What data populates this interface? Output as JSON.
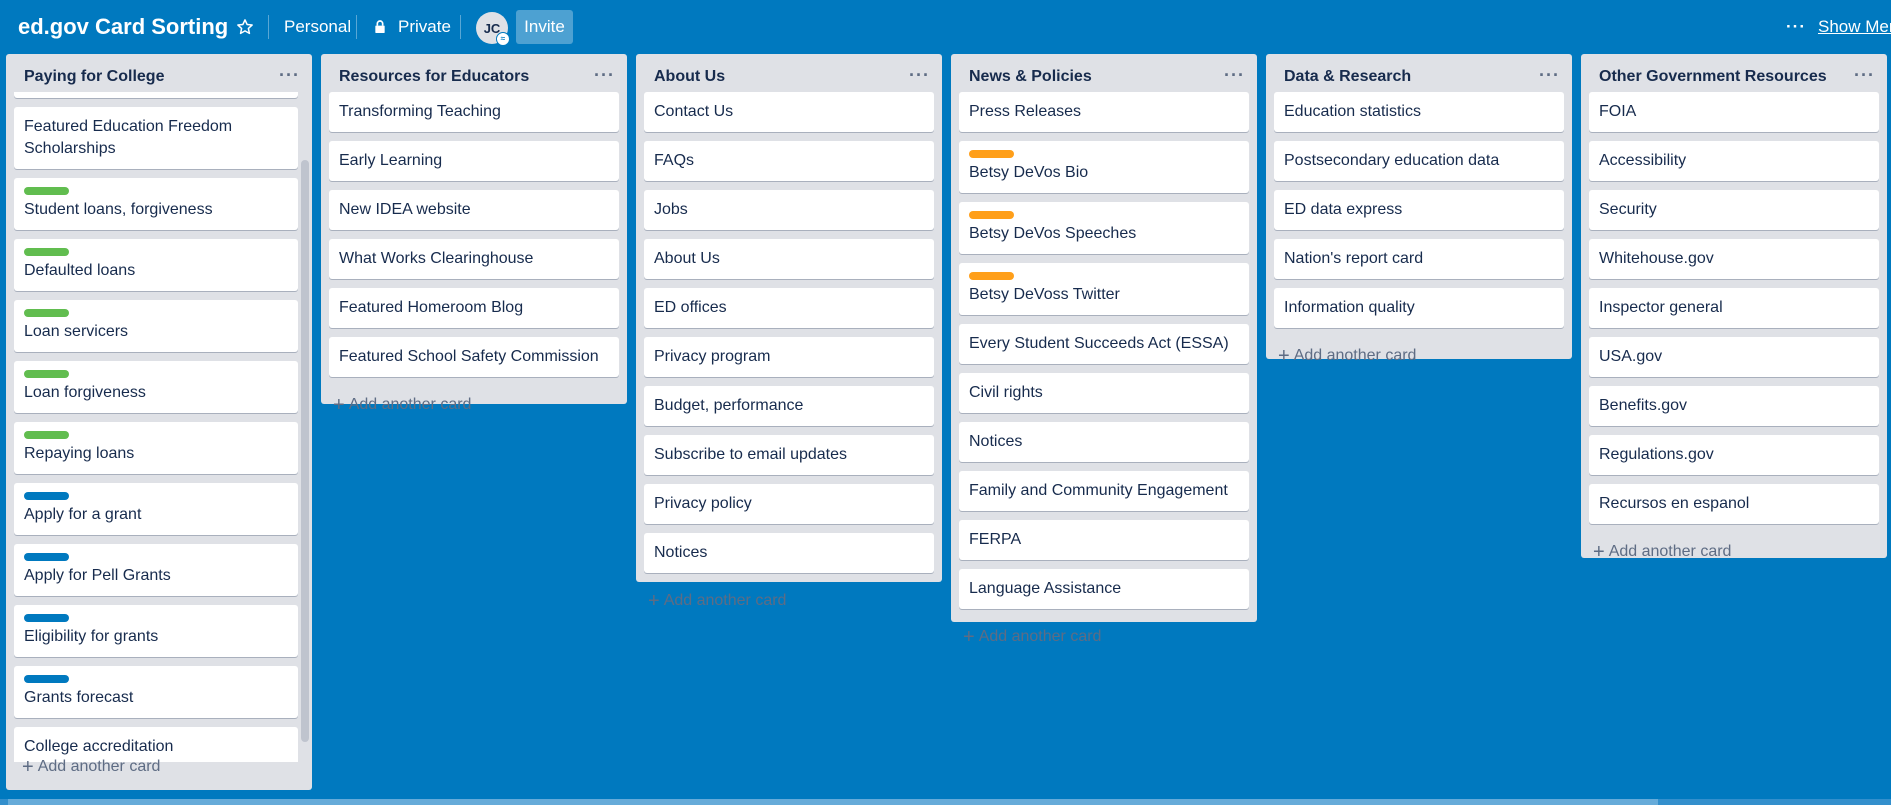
{
  "board": {
    "title": "ed.gov Card Sorting",
    "personal_label": "Personal",
    "private_label": "Private",
    "avatar_initials": "JC",
    "invite_label": "Invite",
    "show_menu_label": "Show Menu",
    "show_menu_dots": "···"
  },
  "colors": {
    "background": "#0079bf",
    "green": "#61bd4f",
    "blue": "#0079bf",
    "orange": "#ff9f1a"
  },
  "add_card_label": "Add another card",
  "lists": [
    {
      "title": "Paying for College",
      "cards": [
        {
          "text": "Featured Education Freedom Scholarships"
        },
        {
          "text": "Student loans, forgiveness",
          "label": "green"
        },
        {
          "text": "Defaulted loans",
          "label": "green"
        },
        {
          "text": "Loan servicers",
          "label": "green"
        },
        {
          "text": "Loan forgiveness",
          "label": "green"
        },
        {
          "text": "Repaying loans",
          "label": "green"
        },
        {
          "text": "Apply for a grant",
          "label": "blue"
        },
        {
          "text": "Apply for Pell Grants",
          "label": "blue"
        },
        {
          "text": "Eligibility for grants",
          "label": "blue"
        },
        {
          "text": "Grants forecast",
          "label": "blue"
        },
        {
          "text": "College accreditation"
        }
      ]
    },
    {
      "title": "Resources for Educators",
      "cards": [
        {
          "text": "Transforming Teaching"
        },
        {
          "text": "Early Learning"
        },
        {
          "text": "New IDEA website"
        },
        {
          "text": "What Works Clearinghouse"
        },
        {
          "text": "Featured Homeroom Blog"
        },
        {
          "text": "Featured School Safety Commission"
        }
      ]
    },
    {
      "title": "About Us",
      "cards": [
        {
          "text": "Contact Us"
        },
        {
          "text": "FAQs"
        },
        {
          "text": "Jobs"
        },
        {
          "text": "About Us"
        },
        {
          "text": "ED offices"
        },
        {
          "text": "Privacy program"
        },
        {
          "text": "Budget, performance"
        },
        {
          "text": "Subscribe to email updates"
        },
        {
          "text": "Privacy policy"
        },
        {
          "text": "Notices"
        }
      ]
    },
    {
      "title": "News & Policies",
      "cards": [
        {
          "text": "Press Releases"
        },
        {
          "text": "Betsy DeVos Bio",
          "label": "orange"
        },
        {
          "text": "Betsy DeVos Speeches",
          "label": "orange"
        },
        {
          "text": "Betsy DeVoss Twitter",
          "label": "orange"
        },
        {
          "text": "Every Student Succeeds Act (ESSA)"
        },
        {
          "text": "Civil rights"
        },
        {
          "text": "Notices"
        },
        {
          "text": "Family and Community Engagement"
        },
        {
          "text": "FERPA"
        },
        {
          "text": "Language Assistance"
        }
      ]
    },
    {
      "title": "Data & Research",
      "cards": [
        {
          "text": "Education statistics"
        },
        {
          "text": "Postsecondary education data"
        },
        {
          "text": "ED data express"
        },
        {
          "text": "Nation's report card"
        },
        {
          "text": "Information quality"
        }
      ]
    },
    {
      "title": "Other Government Resources",
      "cards": [
        {
          "text": "FOIA"
        },
        {
          "text": "Accessibility"
        },
        {
          "text": "Security"
        },
        {
          "text": "Whitehouse.gov"
        },
        {
          "text": "Inspector general"
        },
        {
          "text": "USA.gov"
        },
        {
          "text": "Benefits.gov"
        },
        {
          "text": "Regulations.gov"
        },
        {
          "text": "Recursos en espanol"
        }
      ]
    }
  ]
}
